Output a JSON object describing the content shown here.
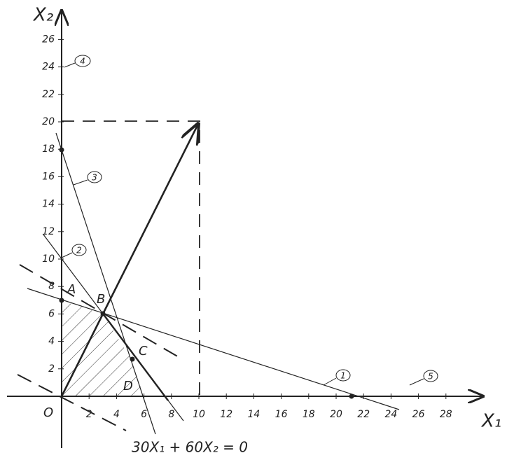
{
  "x_axis": {
    "label": "X₁",
    "ticks": [
      2,
      4,
      6,
      8,
      10,
      12,
      14,
      16,
      18,
      20,
      22,
      24,
      26,
      28
    ]
  },
  "y_axis": {
    "label": "X₂",
    "ticks": [
      2,
      4,
      6,
      8,
      10,
      12,
      14,
      16,
      18,
      20,
      22,
      24,
      26
    ]
  },
  "origin": "O",
  "points": [
    "A",
    "B",
    "C",
    "D"
  ],
  "lines": [
    "1",
    "2",
    "3",
    "4",
    "5"
  ],
  "equation": "30X₁ + 60X₂ = 0"
}
